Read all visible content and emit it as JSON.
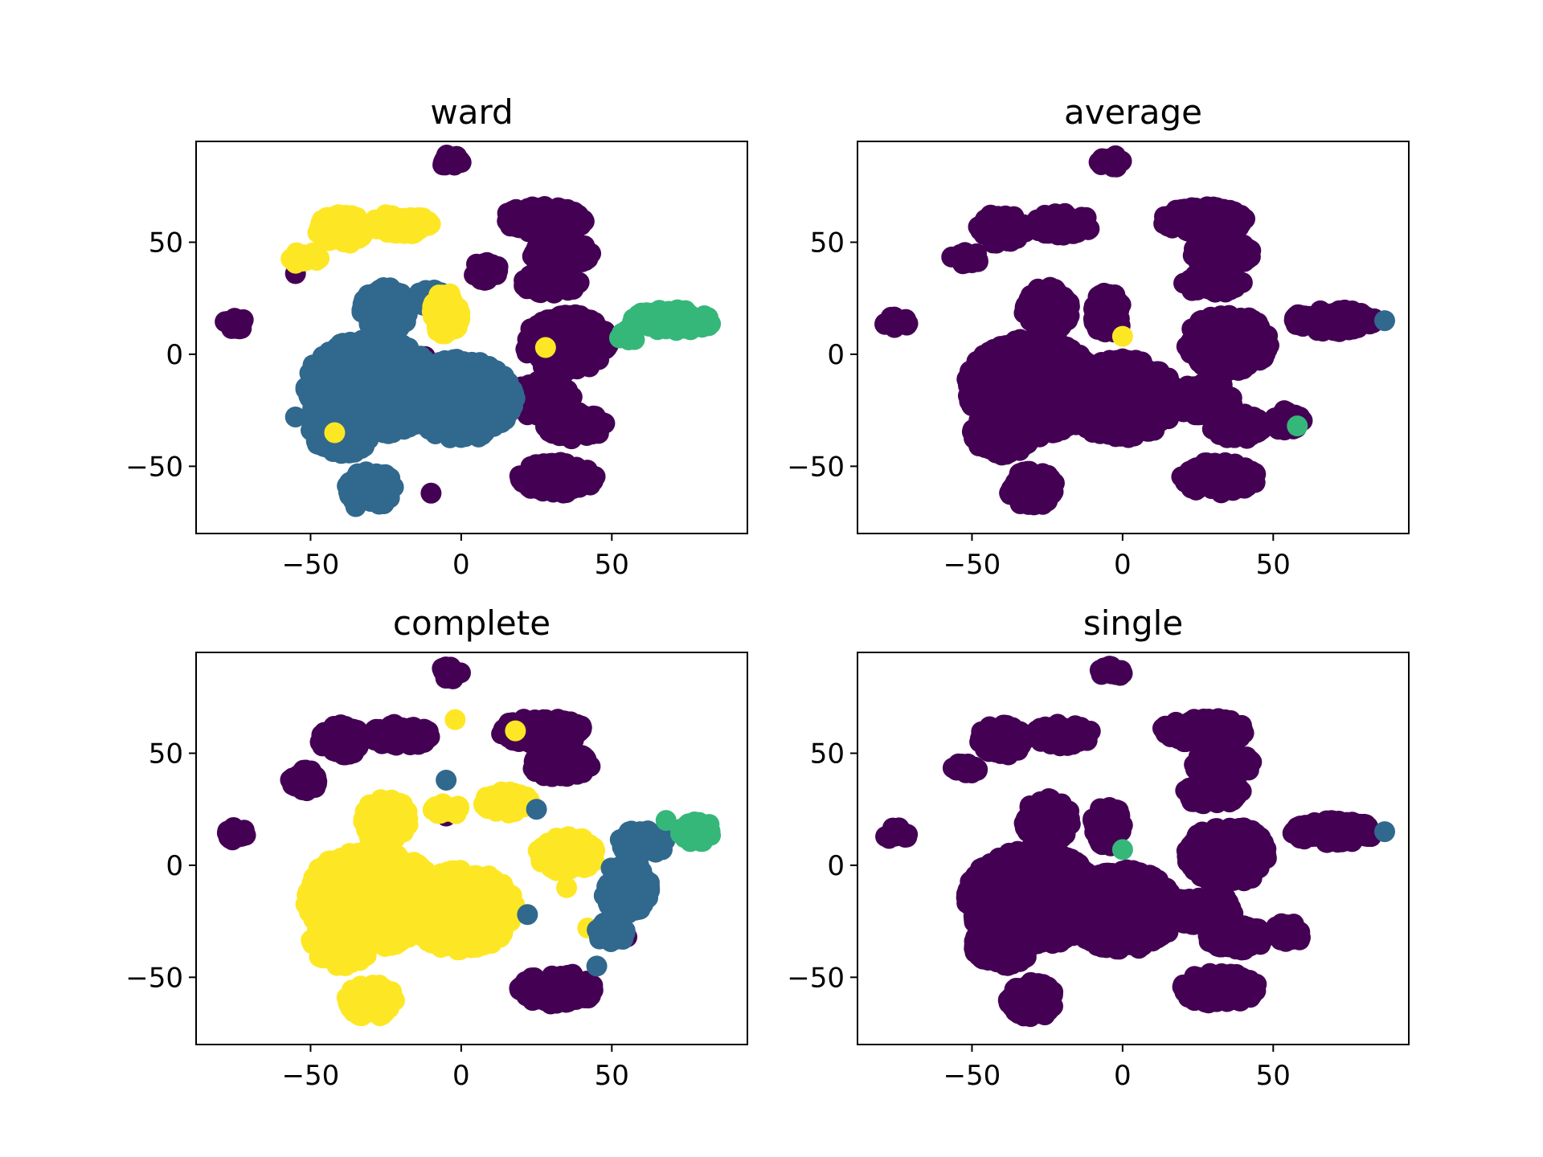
{
  "chart_data": [
    {
      "type": "scatter",
      "title": "ward",
      "xlim": [
        -88,
        95
      ],
      "ylim": [
        -80,
        95
      ],
      "xticks": [
        -50,
        0,
        50
      ],
      "yticks": [
        -50,
        0,
        50
      ],
      "xtick_labels": [
        "−50",
        "0",
        "50"
      ],
      "ytick_labels": [
        "−50",
        "0",
        "50"
      ],
      "clusters": [
        {
          "color": "#440154",
          "blobs": [
            [
              -75,
              14,
              4,
              3
            ],
            [
              -4,
              86,
              4,
              3
            ],
            [
              27,
              60,
              14,
              6
            ],
            [
              33,
              45,
              10,
              6
            ],
            [
              8,
              37,
              5,
              4
            ],
            [
              30,
              32,
              10,
              5
            ],
            [
              35,
              5,
              14,
              13
            ],
            [
              27,
              -20,
              10,
              8
            ],
            [
              38,
              -32,
              10,
              6
            ],
            [
              32,
              -55,
              13,
              7
            ]
          ],
          "points": [
            [
              -55,
              36
            ],
            [
              -20,
              25
            ],
            [
              -12,
              -1
            ],
            [
              -36,
              -58
            ],
            [
              -10,
              -62
            ],
            [
              -22,
              -20
            ],
            [
              -12,
              -4
            ],
            [
              18,
              -20
            ],
            [
              22,
              -27
            ]
          ]
        },
        {
          "color": "#31688e",
          "blobs": [
            [
              -30,
              -15,
              22,
              22
            ],
            [
              -25,
              20,
              8,
              10
            ],
            [
              0,
              -20,
              18,
              18
            ],
            [
              -40,
              -35,
              10,
              10
            ],
            [
              -30,
              -60,
              8,
              8
            ],
            [
              -10,
              25,
              5,
              4
            ]
          ],
          "points": [
            [
              -55,
              -28
            ],
            [
              -45,
              -40
            ],
            [
              -35,
              -68
            ]
          ]
        },
        {
          "color": "#35b779",
          "blobs": [
            [
              70,
              15,
              14,
              5
            ],
            [
              55,
              8,
              3,
              3
            ]
          ],
          "points": []
        },
        {
          "color": "#fde725",
          "blobs": [
            [
              -40,
              56,
              8,
              7
            ],
            [
              -20,
              58,
              10,
              5
            ],
            [
              -5,
              18,
              5,
              10
            ],
            [
              -52,
              43,
              5,
              3
            ]
          ],
          "points": [
            [
              -42,
              -35
            ],
            [
              28,
              3
            ]
          ]
        }
      ]
    },
    {
      "type": "scatter",
      "title": "average",
      "xlim": [
        -88,
        95
      ],
      "ylim": [
        -80,
        95
      ],
      "xticks": [
        -50,
        0,
        50
      ],
      "yticks": [
        -50,
        0,
        50
      ],
      "xtick_labels": [
        "−50",
        "0",
        "50"
      ],
      "ytick_labels": [
        "−50",
        "0",
        "50"
      ],
      "clusters": [
        {
          "color": "#440154",
          "blobs": [
            [
              -75,
              14,
              4,
              3
            ],
            [
              -4,
              86,
              4,
              3
            ],
            [
              -40,
              56,
              8,
              7
            ],
            [
              -20,
              58,
              10,
              5
            ],
            [
              27,
              60,
              14,
              6
            ],
            [
              33,
              45,
              10,
              6
            ],
            [
              -25,
              20,
              8,
              10
            ],
            [
              -30,
              -15,
              22,
              22
            ],
            [
              0,
              -20,
              18,
              18
            ],
            [
              -40,
              -35,
              10,
              10
            ],
            [
              -30,
              -60,
              8,
              8
            ],
            [
              30,
              32,
              10,
              5
            ],
            [
              35,
              5,
              14,
              13
            ],
            [
              27,
              -20,
              10,
              8
            ],
            [
              38,
              -32,
              10,
              6
            ],
            [
              32,
              -55,
              13,
              7
            ],
            [
              70,
              15,
              14,
              5
            ],
            [
              -52,
              43,
              5,
              3
            ],
            [
              -5,
              18,
              5,
              10
            ],
            [
              55,
              -30,
              5,
              5
            ]
          ],
          "points": []
        },
        {
          "color": "#fde725",
          "blobs": [],
          "points": [
            [
              0,
              8
            ]
          ]
        },
        {
          "color": "#31688e",
          "blobs": [],
          "points": [
            [
              87,
              15
            ]
          ]
        },
        {
          "color": "#35b779",
          "blobs": [],
          "points": [
            [
              58,
              -32
            ]
          ]
        }
      ]
    },
    {
      "type": "scatter",
      "title": "complete",
      "xlim": [
        -88,
        95
      ],
      "ylim": [
        -80,
        95
      ],
      "xticks": [
        -50,
        0,
        50
      ],
      "yticks": [
        -50,
        0,
        50
      ],
      "xtick_labels": [
        "−50",
        "0",
        "50"
      ],
      "ytick_labels": [
        "−50",
        "0",
        "50"
      ],
      "clusters": [
        {
          "color": "#440154",
          "blobs": [
            [
              -75,
              14,
              4,
              3
            ],
            [
              -4,
              86,
              4,
              3
            ],
            [
              -40,
              56,
              8,
              7
            ],
            [
              -20,
              58,
              10,
              5
            ],
            [
              27,
              60,
              14,
              6
            ],
            [
              33,
              45,
              10,
              6
            ],
            [
              32,
              -55,
              13,
              7
            ],
            [
              -52,
              38,
              5,
              5
            ]
          ],
          "points": [
            [
              -5,
              22
            ],
            [
              15,
              27
            ],
            [
              20,
              28
            ],
            [
              55,
              -32
            ]
          ]
        },
        {
          "color": "#fde725",
          "blobs": [
            [
              -30,
              -15,
              22,
              22
            ],
            [
              -25,
              20,
              8,
              10
            ],
            [
              0,
              -20,
              18,
              18
            ],
            [
              -40,
              -35,
              10,
              10
            ],
            [
              -30,
              -60,
              8,
              8
            ],
            [
              15,
              28,
              8,
              5
            ],
            [
              35,
              5,
              10,
              8
            ],
            [
              -5,
              25,
              5,
              3
            ]
          ],
          "points": [
            [
              -2,
              65
            ],
            [
              18,
              60
            ],
            [
              42,
              -28
            ],
            [
              35,
              -10
            ]
          ]
        },
        {
          "color": "#31688e",
          "blobs": [
            [
              55,
              -10,
              8,
              12
            ],
            [
              60,
              10,
              8,
              6
            ],
            [
              50,
              -30,
              5,
              5
            ]
          ],
          "points": [
            [
              -5,
              38
            ],
            [
              25,
              25
            ],
            [
              45,
              -45
            ],
            [
              22,
              -22
            ]
          ]
        },
        {
          "color": "#35b779",
          "blobs": [
            [
              78,
              15,
              6,
              5
            ]
          ],
          "points": [
            [
              68,
              20
            ]
          ]
        }
      ]
    },
    {
      "type": "scatter",
      "title": "single",
      "xlim": [
        -88,
        95
      ],
      "ylim": [
        -80,
        95
      ],
      "xticks": [
        -50,
        0,
        50
      ],
      "yticks": [
        -50,
        0,
        50
      ],
      "xtick_labels": [
        "−50",
        "0",
        "50"
      ],
      "ytick_labels": [
        "−50",
        "0",
        "50"
      ],
      "clusters": [
        {
          "color": "#440154",
          "blobs": [
            [
              -75,
              14,
              4,
              3
            ],
            [
              -4,
              86,
              4,
              3
            ],
            [
              -40,
              56,
              8,
              7
            ],
            [
              -20,
              58,
              10,
              5
            ],
            [
              27,
              60,
              14,
              6
            ],
            [
              33,
              45,
              10,
              6
            ],
            [
              -25,
              20,
              8,
              10
            ],
            [
              -30,
              -15,
              22,
              22
            ],
            [
              0,
              -20,
              18,
              18
            ],
            [
              -40,
              -35,
              10,
              10
            ],
            [
              -30,
              -60,
              8,
              8
            ],
            [
              30,
              32,
              10,
              5
            ],
            [
              35,
              5,
              14,
              13
            ],
            [
              27,
              -20,
              10,
              8
            ],
            [
              38,
              -32,
              10,
              6
            ],
            [
              32,
              -55,
              13,
              7
            ],
            [
              70,
              15,
              14,
              5
            ],
            [
              -52,
              43,
              5,
              3
            ],
            [
              -5,
              18,
              5,
              10
            ],
            [
              55,
              -30,
              5,
              5
            ]
          ],
          "points": []
        },
        {
          "color": "#35b779",
          "blobs": [],
          "points": [
            [
              0,
              7
            ]
          ]
        },
        {
          "color": "#31688e",
          "blobs": [],
          "points": [
            [
              87,
              15
            ]
          ]
        }
      ]
    }
  ]
}
